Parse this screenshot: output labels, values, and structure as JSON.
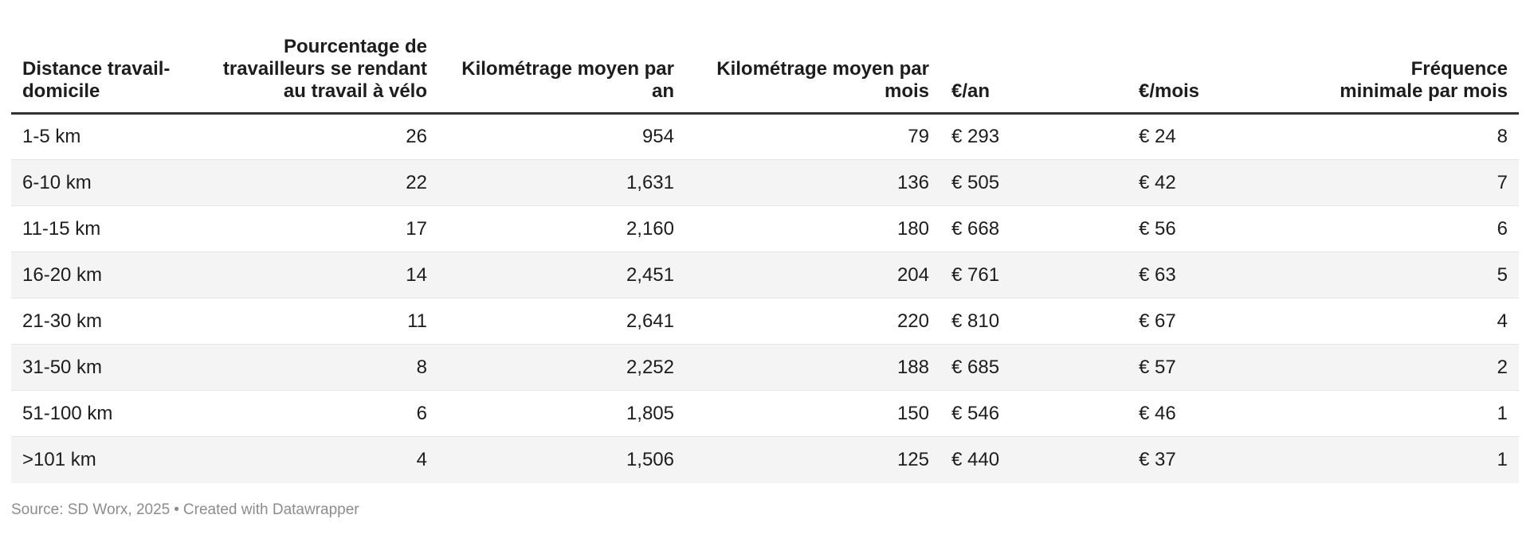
{
  "chart_data": {
    "type": "table",
    "columns": [
      {
        "label": "Distance travail-domicile",
        "align": "left"
      },
      {
        "label": "Pourcentage de travailleurs se rendant au travail à vélo",
        "align": "right"
      },
      {
        "label": "Kilométrage moyen par an",
        "align": "right"
      },
      {
        "label": "Kilométrage moyen par mois",
        "align": "right"
      },
      {
        "label": "€/an",
        "align": "left"
      },
      {
        "label": "€/mois",
        "align": "left"
      },
      {
        "label": "Fréquence minimale par mois",
        "align": "right"
      }
    ],
    "rows": [
      [
        "1-5 km",
        "26",
        "954",
        "79",
        "€ 293",
        "€ 24",
        "8"
      ],
      [
        "6-10 km",
        "22",
        "1,631",
        "136",
        "€ 505",
        "€ 42",
        "7"
      ],
      [
        "11-15 km",
        "17",
        "2,160",
        "180",
        "€ 668",
        "€ 56",
        "6"
      ],
      [
        "16-20 km",
        "14",
        "2,451",
        "204",
        "€ 761",
        "€ 63",
        "5"
      ],
      [
        "21-30 km",
        "11",
        "2,641",
        "220",
        "€ 810",
        "€ 67",
        "4"
      ],
      [
        "31-50 km",
        "8",
        "2,252",
        "188",
        "€ 685",
        "€ 57",
        "2"
      ],
      [
        "51-100 km",
        "6",
        "1,805",
        "150",
        "€ 546",
        "€ 46",
        "1"
      ],
      [
        ">101 km",
        "4",
        "1,506",
        "125",
        "€ 440",
        "€ 37",
        "1"
      ]
    ]
  },
  "footer": {
    "source": "Source: SD Worx, 2025",
    "separator": "•",
    "attribution": "Created with Datawrapper"
  },
  "colors": {
    "text": "#1d1d1d",
    "header_rule": "#333333",
    "row_stripe": "#f4f4f4",
    "row_border": "#e6e6e6",
    "footer_text": "#8c8c8c"
  }
}
